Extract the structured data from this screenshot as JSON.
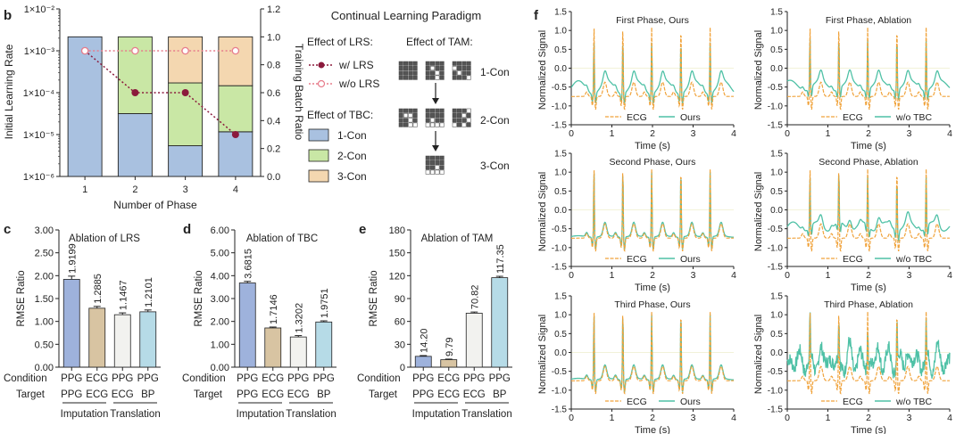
{
  "panels": {
    "b": "b",
    "c": "c",
    "d": "d",
    "e": "e",
    "f": "f"
  },
  "colors": {
    "con1": "#a9c1e0",
    "con2": "#c9e7a5",
    "con3": "#f4d7b0",
    "lrs_on": "#8b1a3c",
    "lrs_off": "#e77d8c",
    "ecg": "#f0a23a",
    "ppg": "#4fc1a6",
    "bar_blue": "#9eb2dc",
    "bar_tan": "#d8c4a2",
    "bar_white": "#f2f2ef",
    "bar_cyan": "#b6dbe7",
    "tam_cell_dark": "#555555",
    "tam_cell_light": "#ffffff"
  },
  "schematic": {
    "title": "Continual Learning Paradigm",
    "lrs_heading": "Effect of LRS:",
    "tam_heading": "Effect of TAM:",
    "tbc_heading": "Effect of TBC:",
    "lrs_legend": [
      "w/ LRS",
      "w/o LRS"
    ],
    "tbc_legend": [
      "1-Con",
      "2-Con",
      "3-Con"
    ],
    "tam_labels": [
      "1-Con",
      "2-Con",
      "3-Con"
    ],
    "tam_row1_light": [
      [],
      [
        5,
        10,
        14
      ],
      [
        4,
        9,
        15
      ]
    ],
    "tam_row2_light": [
      [
        5,
        6,
        10,
        14,
        15
      ],
      [
        9,
        12,
        13,
        14,
        15
      ],
      [
        3,
        6,
        11,
        12,
        14
      ]
    ],
    "tam_row3_light": [
      [
        10,
        12,
        13,
        14,
        15
      ]
    ]
  },
  "chart_data": [
    {
      "id": "b",
      "type": "bar",
      "categories": [
        "1",
        "2",
        "3",
        "4"
      ],
      "xlabel": "Number of Phase",
      "ylabel": "Initial Learning Rate",
      "y2label": "Training Batch Ratio",
      "ylim": [
        -6,
        -2
      ],
      "yscale": "log",
      "yticks": [
        "1×10⁻⁶",
        "1×10⁻⁵",
        "1×10⁻⁴",
        "1×10⁻³",
        "1×10⁻²"
      ],
      "y2lim": [
        0,
        1.2
      ],
      "y2ticks": [
        "0.0",
        "0.2",
        "0.4",
        "0.6",
        "0.8",
        "1.0",
        "1.2"
      ],
      "stack": [
        {
          "name": "1-Con",
          "values": [
            1.0,
            0.45,
            0.22,
            0.32
          ]
        },
        {
          "name": "2-Con",
          "values": [
            0.0,
            0.55,
            0.45,
            0.33
          ]
        },
        {
          "name": "3-Con",
          "values": [
            0.0,
            0.0,
            0.33,
            0.35
          ]
        }
      ],
      "lines": [
        {
          "name": "w/ LRS",
          "values": [
            0.001,
            0.0001,
            0.0001,
            1e-05
          ]
        },
        {
          "name": "w/o LRS",
          "values": [
            0.001,
            0.001,
            0.001,
            0.001
          ]
        }
      ]
    },
    {
      "id": "c",
      "type": "bar",
      "title": "Ablation of LRS",
      "ylabel": "RMSE Ratio",
      "ylim": [
        0,
        3
      ],
      "yticks": [
        "0.00",
        "0.50",
        "1.00",
        "1.50",
        "2.00",
        "2.50",
        "3.00"
      ],
      "values": [
        1.9199,
        1.2885,
        1.1467,
        1.2101
      ],
      "labels": [
        "1.9199",
        "1.2885",
        "1.1467",
        "1.2101"
      ],
      "errors": [
        0.07,
        0.04,
        0.04,
        0.04
      ],
      "condition": [
        "PPG",
        "ECG",
        "PPG",
        "PPG"
      ],
      "target": [
        "PPG",
        "ECG",
        "ECG",
        "BP"
      ],
      "row_labels": [
        "Condition",
        "Target"
      ],
      "groups": [
        "Imputation",
        "Translation"
      ]
    },
    {
      "id": "d",
      "type": "bar",
      "title": "Ablation of TBC",
      "ylabel": "RMSE Ratio",
      "ylim": [
        0,
        6
      ],
      "yticks": [
        "0.00",
        "1.00",
        "2.00",
        "3.00",
        "4.00",
        "5.00",
        "6.00"
      ],
      "values": [
        3.6815,
        1.7146,
        1.3202,
        1.9751
      ],
      "labels": [
        "3.6815",
        "1.7146",
        "1.3202",
        "1.9751"
      ],
      "errors": [
        0.07,
        0.04,
        0.06,
        0.05
      ],
      "condition": [
        "PPG",
        "ECG",
        "PPG",
        "PPG"
      ],
      "target": [
        "PPG",
        "ECG",
        "ECG",
        "BP"
      ],
      "row_labels": [
        "Condition",
        "Target"
      ],
      "groups": [
        "Imputation",
        "Translation"
      ]
    },
    {
      "id": "e",
      "type": "bar",
      "title": "Ablation of TAM",
      "ylabel": "RMSE Ratio",
      "ylim": [
        0,
        180
      ],
      "yticks": [
        "0",
        "30",
        "60",
        "90",
        "120",
        "150",
        "180"
      ],
      "values": [
        14.2,
        9.79,
        70.82,
        117.35
      ],
      "labels": [
        "14.20",
        "9.79",
        "70.82",
        "117.35"
      ],
      "errors": [
        1.0,
        0.8,
        1.5,
        1.8
      ],
      "condition": [
        "PPG",
        "ECG",
        "PPG",
        "PPG"
      ],
      "target": [
        "PPG",
        "ECG",
        "ECG",
        "BP"
      ],
      "row_labels": [
        "Condition",
        "Target"
      ],
      "groups": [
        "Imputation",
        "Translation"
      ]
    },
    {
      "id": "f",
      "type": "line",
      "xlabel": "Time (s)",
      "ylabel": "Normalized Signal",
      "xlim": [
        0,
        4
      ],
      "ylim": [
        -1.5,
        1.5
      ],
      "xticks": [
        "0",
        "1",
        "2",
        "3",
        "4"
      ],
      "yticks": [
        "-1.5",
        "-1.0",
        "-0.5",
        "0.0",
        "0.5",
        "1.0",
        "1.5"
      ],
      "beats": [
        0.56,
        1.27,
        1.98,
        2.7,
        3.42
      ],
      "subplots": [
        {
          "title": "First Phase, Ours",
          "legend": [
            "ECG",
            "Ours"
          ],
          "fit": "fit_a"
        },
        {
          "title": "First Phase, Ablation",
          "legend": [
            "ECG",
            "w/o TBC"
          ],
          "fit": "fit_b"
        },
        {
          "title": "Second Phase, Ours",
          "legend": [
            "ECG",
            "Ours"
          ],
          "fit": "good"
        },
        {
          "title": "Second Phase, Ablation",
          "legend": [
            "ECG",
            "w/o TBC"
          ],
          "fit": "mid"
        },
        {
          "title": "Third Phase, Ours",
          "legend": [
            "ECG",
            "Ours"
          ],
          "fit": "good"
        },
        {
          "title": "Third Phase, Ablation",
          "legend": [
            "ECG",
            "w/o TBC"
          ],
          "fit": "noisy"
        }
      ]
    }
  ]
}
